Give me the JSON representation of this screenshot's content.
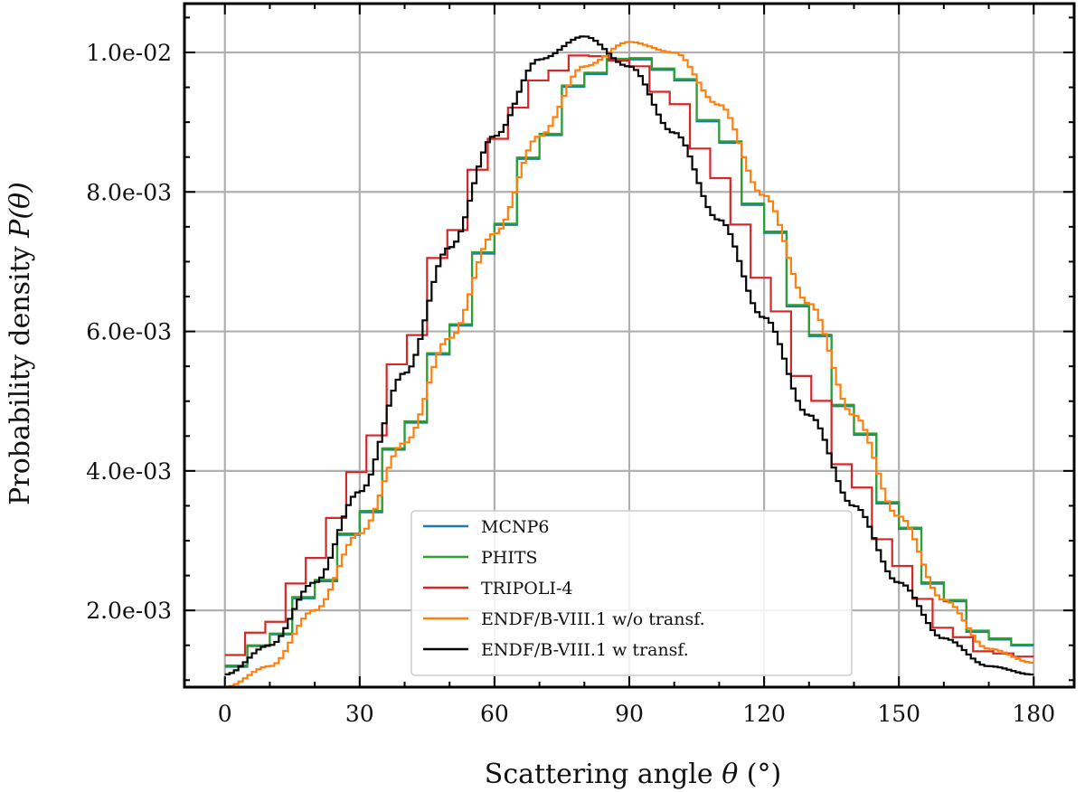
{
  "chart_data": {
    "type": "line",
    "step": true,
    "title": "",
    "xlabel": {
      "prefix": "Scattering angle ",
      "symbol": "θ",
      "suffix": " (°)"
    },
    "ylabel": {
      "prefix": "Probability density ",
      "symbol": "P(θ)"
    },
    "xlim": [
      -9,
      189
    ],
    "ylim": [
      0.0009,
      0.0107
    ],
    "xticks": [
      0,
      30,
      60,
      90,
      120,
      150,
      180
    ],
    "xtick_labels": [
      "0",
      "30",
      "60",
      "90",
      "120",
      "150",
      "180"
    ],
    "yticks": [
      0.002,
      0.004,
      0.006,
      0.008,
      0.01
    ],
    "ytick_labels": [
      "2.0e-03",
      "4.0e-03",
      "6.0e-03",
      "8.0e-03",
      "1.0e-02"
    ],
    "grid": true,
    "legend_position": "lower-center",
    "series": [
      {
        "name": "MCNP6",
        "color": "#1f77b4",
        "bins": 36,
        "x": [
          0,
          10,
          20,
          30,
          40,
          50,
          60,
          70,
          80,
          90,
          100,
          110,
          120,
          130,
          140,
          150,
          160,
          170,
          180
        ],
        "y": [
          0.00113,
          0.00155,
          0.00228,
          0.00322,
          0.00449,
          0.00587,
          0.00733,
          0.00867,
          0.00965,
          0.00993,
          0.00972,
          0.00889,
          0.00763,
          0.00614,
          0.00472,
          0.00333,
          0.00222,
          0.0016,
          0.00148
        ]
      },
      {
        "name": "PHITS",
        "color": "#2ca02c",
        "bins": 36,
        "x": [
          0,
          10,
          20,
          30,
          40,
          50,
          60,
          70,
          80,
          90,
          100,
          110,
          120,
          130,
          140,
          150,
          160,
          170,
          180
        ],
        "y": [
          0.00115,
          0.00156,
          0.0023,
          0.00324,
          0.00451,
          0.00589,
          0.00735,
          0.00869,
          0.00967,
          0.00995,
          0.00974,
          0.00891,
          0.00765,
          0.00616,
          0.00474,
          0.00335,
          0.00224,
          0.00162,
          0.00149
        ]
      },
      {
        "name": "TRIPOLI-4",
        "color": "#d62728",
        "bins": 40,
        "x": [
          0,
          10,
          20,
          30,
          40,
          50,
          60,
          70,
          80,
          90,
          100,
          110,
          120,
          130,
          140,
          150,
          160,
          170,
          180
        ],
        "y": [
          0.0013,
          0.0018,
          0.00275,
          0.004,
          0.00565,
          0.00735,
          0.00875,
          0.0096,
          0.00997,
          0.00987,
          0.0093,
          0.0082,
          0.00675,
          0.00525,
          0.00385,
          0.00265,
          0.00175,
          0.0014,
          0.00133
        ]
      },
      {
        "name": "ENDF/B-VIII.1 w/o transf.",
        "color": "#ff7f0e",
        "bins": 180,
        "x": [
          0,
          10,
          20,
          30,
          40,
          50,
          60,
          70,
          80,
          90,
          100,
          110,
          120,
          130,
          140,
          150,
          160,
          170,
          180
        ],
        "y": [
          0.0009,
          0.0012,
          0.002,
          0.0031,
          0.0044,
          0.0059,
          0.0074,
          0.0088,
          0.0098,
          0.01015,
          0.01,
          0.00925,
          0.00795,
          0.0064,
          0.0048,
          0.00335,
          0.00215,
          0.00145,
          0.00125
        ]
      },
      {
        "name": "ENDF/B-VIII.1 w transf.",
        "color": "#000000",
        "bins": 180,
        "x": [
          0,
          10,
          20,
          30,
          40,
          50,
          60,
          70,
          80,
          90,
          100,
          110,
          120,
          130,
          140,
          150,
          160,
          170,
          180
        ],
        "y": [
          0.00108,
          0.0015,
          0.0024,
          0.0037,
          0.0054,
          0.0072,
          0.0088,
          0.0099,
          0.01023,
          0.0098,
          0.00885,
          0.0076,
          0.0062,
          0.0048,
          0.0035,
          0.0024,
          0.0016,
          0.0012,
          0.00108
        ]
      }
    ]
  }
}
